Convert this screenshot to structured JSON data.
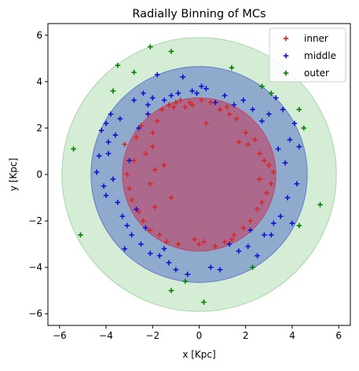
{
  "chart_data": {
    "type": "scatter",
    "title": "Radially Binning of MCs",
    "xlabel": "x [Kpc]",
    "ylabel": "y [Kpc]",
    "xlim": [
      -6.5,
      6.5
    ],
    "ylim": [
      -6.5,
      6.5
    ],
    "xticks": [
      -6,
      -4,
      -2,
      0,
      2,
      4,
      6
    ],
    "yticks": [
      -6,
      -4,
      -2,
      0,
      2,
      4,
      6
    ],
    "xtick_labels": [
      "−6",
      "−4",
      "−2",
      "0",
      "2",
      "4",
      "6"
    ],
    "ytick_labels": [
      "−6",
      "−4",
      "−2",
      "0",
      "2",
      "4",
      "6"
    ],
    "grid": false,
    "legend_position": "top-right",
    "circles": [
      {
        "name": "outer",
        "radius": 5.9,
        "color": "#2ca02c",
        "opacity": 0.2
      },
      {
        "name": "middle",
        "radius": 4.65,
        "color": "#1f3fbf",
        "opacity": 0.38
      },
      {
        "name": "inner",
        "radius": 3.3,
        "color": "#c8284a",
        "opacity": 0.5
      }
    ],
    "series": [
      {
        "name": "inner",
        "color": "#d62728",
        "points": [
          [
            -3.2,
            1.3
          ],
          [
            -3.1,
            0.0
          ],
          [
            -3.0,
            -0.6
          ],
          [
            -2.9,
            -1.1
          ],
          [
            -2.8,
            0.6
          ],
          [
            -2.7,
            1.6
          ],
          [
            -2.6,
            -1.6
          ],
          [
            -2.5,
            2.1
          ],
          [
            -2.4,
            -2.0
          ],
          [
            -2.2,
            2.6
          ],
          [
            -2.1,
            -2.4
          ],
          [
            -2.0,
            1.2
          ],
          [
            -2.0,
            1.8
          ],
          [
            -1.9,
            -1.4
          ],
          [
            -1.8,
            2.3
          ],
          [
            -1.7,
            -2.6
          ],
          [
            -1.6,
            2.8
          ],
          [
            -1.5,
            0.4
          ],
          [
            -1.4,
            -2.9
          ],
          [
            -1.3,
            3.0
          ],
          [
            -1.2,
            -1.0
          ],
          [
            -1.1,
            2.9
          ],
          [
            -1.0,
            3.1
          ],
          [
            -0.9,
            -3.0
          ],
          [
            -0.8,
            3.2
          ],
          [
            -0.6,
            2.9
          ],
          [
            -0.4,
            3.1
          ],
          [
            -0.2,
            -2.8
          ],
          [
            0.0,
            -3.0
          ],
          [
            0.1,
            3.2
          ],
          [
            0.3,
            2.2
          ],
          [
            0.5,
            3.1
          ],
          [
            0.7,
            -3.1
          ],
          [
            0.9,
            2.8
          ],
          [
            1.1,
            -2.9
          ],
          [
            1.3,
            2.6
          ],
          [
            1.5,
            -2.6
          ],
          [
            1.6,
            2.4
          ],
          [
            1.7,
            1.4
          ],
          [
            1.9,
            -2.3
          ],
          [
            2.0,
            1.8
          ],
          [
            2.1,
            1.3
          ],
          [
            2.2,
            -2.0
          ],
          [
            2.4,
            1.5
          ],
          [
            2.5,
            -1.5
          ],
          [
            2.6,
            0.9
          ],
          [
            2.7,
            -1.2
          ],
          [
            2.8,
            0.6
          ],
          [
            2.9,
            -0.8
          ],
          [
            3.0,
            0.4
          ],
          [
            3.1,
            -0.4
          ],
          [
            3.2,
            0.1
          ],
          [
            -2.3,
            0.9
          ],
          [
            -2.1,
            -0.4
          ],
          [
            -1.9,
            0.2
          ],
          [
            1.2,
            2.9
          ],
          [
            1.4,
            -2.8
          ],
          [
            2.6,
            -0.2
          ],
          [
            -0.3,
            3.0
          ],
          [
            0.2,
            -2.9
          ]
        ]
      },
      {
        "name": "middle",
        "color": "#1010d0",
        "points": [
          [
            -4.4,
            0.1
          ],
          [
            -4.3,
            0.8
          ],
          [
            -4.2,
            1.9
          ],
          [
            -4.1,
            -0.5
          ],
          [
            -4.0,
            2.2
          ],
          [
            -3.9,
            0.9
          ],
          [
            -3.8,
            2.6
          ],
          [
            -3.7,
            -0.2
          ],
          [
            -3.6,
            1.7
          ],
          [
            -3.5,
            -1.2
          ],
          [
            -3.4,
            2.4
          ],
          [
            -3.3,
            -1.8
          ],
          [
            -3.2,
            -3.2
          ],
          [
            -3.1,
            -2.2
          ],
          [
            -3.0,
            0.6
          ],
          [
            -2.9,
            -2.6
          ],
          [
            -2.8,
            3.2
          ],
          [
            -2.7,
            -1.5
          ],
          [
            -2.6,
            2.0
          ],
          [
            -2.5,
            -3.0
          ],
          [
            -2.4,
            3.5
          ],
          [
            -2.3,
            -2.3
          ],
          [
            -2.2,
            3.0
          ],
          [
            -2.1,
            -3.4
          ],
          [
            -2.0,
            3.3
          ],
          [
            -1.8,
            4.3
          ],
          [
            -1.7,
            -3.5
          ],
          [
            -1.5,
            3.2
          ],
          [
            -1.3,
            -3.8
          ],
          [
            -1.2,
            3.4
          ],
          [
            -1.0,
            -4.1
          ],
          [
            -0.9,
            3.5
          ],
          [
            -0.7,
            4.2
          ],
          [
            -0.5,
            -4.3
          ],
          [
            -0.3,
            3.6
          ],
          [
            -0.1,
            3.5
          ],
          [
            0.1,
            3.8
          ],
          [
            0.3,
            3.7
          ],
          [
            0.5,
            -4.0
          ],
          [
            0.7,
            3.1
          ],
          [
            0.9,
            -4.1
          ],
          [
            1.1,
            3.4
          ],
          [
            1.3,
            -3.0
          ],
          [
            1.5,
            3.0
          ],
          [
            1.7,
            -3.3
          ],
          [
            1.9,
            3.2
          ],
          [
            2.1,
            -3.1
          ],
          [
            2.3,
            2.8
          ],
          [
            2.5,
            -3.5
          ],
          [
            2.7,
            2.3
          ],
          [
            2.8,
            -2.6
          ],
          [
            3.0,
            2.6
          ],
          [
            3.2,
            -2.1
          ],
          [
            3.3,
            3.3
          ],
          [
            3.4,
            1.1
          ],
          [
            3.5,
            -1.8
          ],
          [
            3.6,
            2.8
          ],
          [
            3.7,
            0.5
          ],
          [
            3.8,
            -1.0
          ],
          [
            3.9,
            1.5
          ],
          [
            4.0,
            -2.1
          ],
          [
            4.1,
            2.2
          ],
          [
            4.2,
            -0.4
          ],
          [
            4.3,
            1.2
          ],
          [
            -4.0,
            -0.9
          ],
          [
            -3.9,
            1.4
          ],
          [
            -2.2,
            2.6
          ],
          [
            -1.5,
            -3.2
          ],
          [
            2.2,
            -2.4
          ],
          [
            3.1,
            -2.6
          ]
        ]
      },
      {
        "name": "outer",
        "color": "#008000",
        "points": [
          [
            -5.4,
            1.1
          ],
          [
            -5.1,
            -2.6
          ],
          [
            -3.7,
            3.6
          ],
          [
            -3.5,
            4.7
          ],
          [
            -2.8,
            4.4
          ],
          [
            -2.1,
            5.5
          ],
          [
            -1.2,
            5.3
          ],
          [
            -1.2,
            -5.0
          ],
          [
            -0.6,
            -4.6
          ],
          [
            0.2,
            -5.5
          ],
          [
            1.4,
            4.6
          ],
          [
            2.3,
            -4.0
          ],
          [
            2.7,
            3.8
          ],
          [
            3.1,
            3.5
          ],
          [
            4.3,
            2.8
          ],
          [
            4.3,
            -2.2
          ],
          [
            4.5,
            2.0
          ],
          [
            5.2,
            -1.3
          ]
        ]
      }
    ]
  }
}
